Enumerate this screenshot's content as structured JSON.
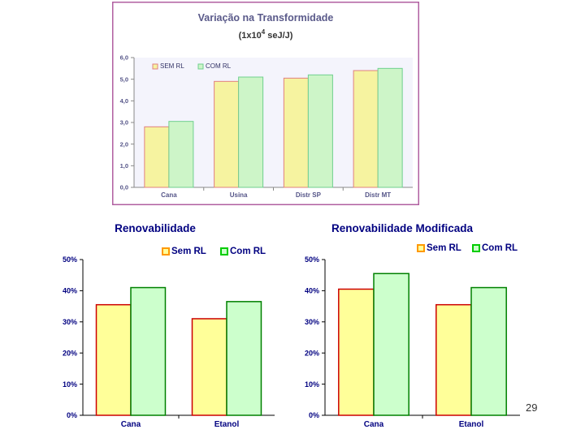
{
  "page_number": "29",
  "chart_data": [
    {
      "type": "bar",
      "title": "Variação na Transformidade",
      "subtitle_pre": "(1x10",
      "subtitle_sup": "4",
      "subtitle_post": " seJ/J)",
      "categories": [
        "Cana",
        "Usina",
        "Distr SP",
        "Distr MT"
      ],
      "series": [
        {
          "name": "SEM RL",
          "values": [
            2.8,
            4.9,
            5.05,
            5.4
          ],
          "color": "#f6f3a0",
          "stroke": "#e08080"
        },
        {
          "name": "COM RL",
          "values": [
            3.05,
            5.1,
            5.2,
            5.5
          ],
          "color": "#cdf5c8",
          "stroke": "#6fcf8e"
        }
      ],
      "ylim": [
        0,
        6
      ],
      "yticks": [
        "0,0",
        "1,0",
        "2,0",
        "3,0",
        "4,0",
        "5,0",
        "6,0"
      ],
      "legend_position": "top-left",
      "border_color": "#b05fa0",
      "plot_background": "#f4f4fc"
    },
    {
      "type": "bar",
      "title": "Renovabilidade",
      "categories": [
        "Cana",
        "Etanol"
      ],
      "series": [
        {
          "name": "Sem RL",
          "values": [
            35.5,
            31
          ],
          "color": "#ffff99",
          "stroke": "#cc0000"
        },
        {
          "name": "Com RL",
          "values": [
            41,
            36.5
          ],
          "color": "#ccffcc",
          "stroke": "#008000"
        }
      ],
      "ylim": [
        0,
        50
      ],
      "yticks": [
        "0%",
        "10%",
        "20%",
        "30%",
        "40%",
        "50%"
      ],
      "legend_position": "top-right",
      "legend_swatch_colors": [
        "#ff9900",
        "#00cc00"
      ]
    },
    {
      "type": "bar",
      "title": "Renovabilidade Modificada",
      "categories": [
        "Cana",
        "Etanol"
      ],
      "series": [
        {
          "name": "Sem RL",
          "values": [
            40.5,
            35.5
          ],
          "color": "#ffff99",
          "stroke": "#cc0000"
        },
        {
          "name": "Com RL",
          "values": [
            45.5,
            41
          ],
          "color": "#ccffcc",
          "stroke": "#008000"
        }
      ],
      "ylim": [
        0,
        50
      ],
      "yticks": [
        "0%",
        "10%",
        "20%",
        "30%",
        "40%",
        "50%"
      ],
      "legend_position": "top-right",
      "legend_swatch_colors": [
        "#ff9900",
        "#00cc00"
      ]
    }
  ]
}
